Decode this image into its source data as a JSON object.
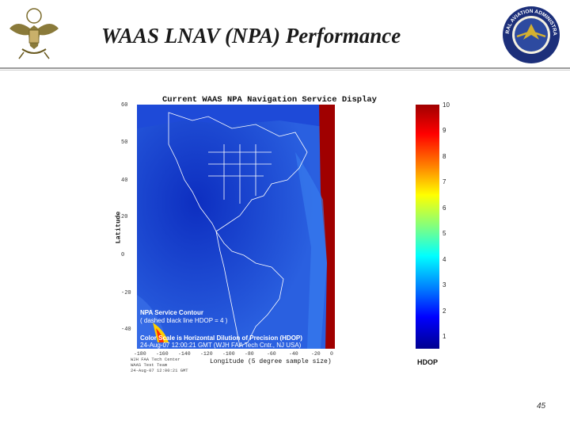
{
  "slide": {
    "title": "WAAS LNAV (NPA) Performance",
    "page_number": "45",
    "left_logo_icon": "us-eagle-seal-icon",
    "right_logo_icon": "faa-seal-icon",
    "right_logo_text": "FEDERAL AVIATION ADMINISTRATION"
  },
  "figure": {
    "title": "Current WAAS NPA Navigation Service Display",
    "y_axis_label": "Latitude",
    "x_axis_label": "Longitude (5 degree sample size)",
    "y_ticks": [
      "60",
      "50",
      "40",
      "20",
      "0",
      "-20",
      "-40"
    ],
    "x_ticks": [
      "-180",
      "-160",
      "-140",
      "-120",
      "-100",
      "-80",
      "-60",
      "-40",
      "-20",
      "0"
    ],
    "overlay": {
      "line1": "NPA Service Contour",
      "line2": "( dashed black line HDOP = 4 )",
      "line3": "Color Scale is Horizontal Dilution of Precision (HDOP)",
      "line4": "24-Aug-07 12:00:21 GMT  (WJH FAA Tech Cntr., NJ USA)"
    },
    "credit": {
      "line1": "WJH FAA Tech Center",
      "line2": "WAAS Test Team",
      "line3": "24-Aug-07 12:00:21 GMT"
    },
    "colorbar": {
      "label": "HDOP",
      "ticks": [
        "10",
        "9",
        "8",
        "7",
        "6",
        "5",
        "4",
        "3",
        "2",
        "1"
      ],
      "range": [
        1,
        10
      ]
    },
    "colors": {
      "low_hdop": "#1a3fd6",
      "high_hdop": "#a00000"
    }
  }
}
